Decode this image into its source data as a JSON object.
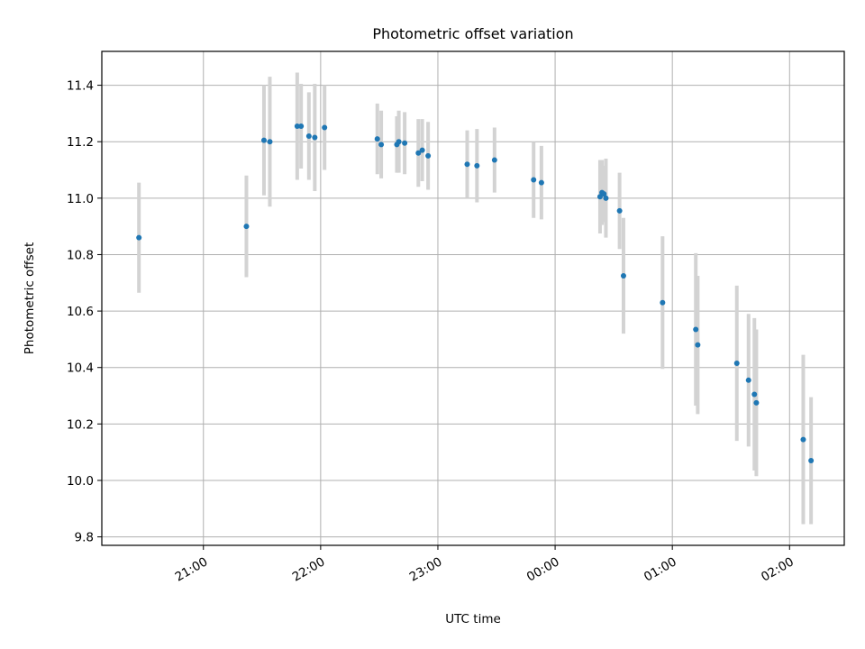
{
  "chart_data": {
    "type": "scatter",
    "title": "Photometric offset variation",
    "xlabel": "UTC time",
    "ylabel": "Photometric offset",
    "xlim": [
      "20:08",
      "02:28"
    ],
    "ylim": [
      9.77,
      11.52
    ],
    "x_ticks": [
      "21:00",
      "22:00",
      "23:00",
      "00:00",
      "01:00",
      "02:00"
    ],
    "y_ticks": [
      9.8,
      10.0,
      10.2,
      10.4,
      10.6,
      10.8,
      11.0,
      11.2,
      11.4
    ],
    "grid": true,
    "colors": {
      "points": "#1f77b4",
      "errorbars": "#d3d3d3",
      "grid": "#b0b0b0"
    },
    "points": [
      {
        "x": "20:27",
        "y": 10.86,
        "err": 0.195
      },
      {
        "x": "21:22",
        "y": 10.9,
        "err": 0.18
      },
      {
        "x": "21:31",
        "y": 11.205,
        "err": 0.195
      },
      {
        "x": "21:34",
        "y": 11.2,
        "err": 0.23
      },
      {
        "x": "21:48",
        "y": 11.255,
        "err": 0.19
      },
      {
        "x": "21:50",
        "y": 11.255,
        "err": 0.15
      },
      {
        "x": "21:54",
        "y": 11.22,
        "err": 0.155
      },
      {
        "x": "21:57",
        "y": 11.215,
        "err": 0.19
      },
      {
        "x": "22:02",
        "y": 11.25,
        "err": 0.15
      },
      {
        "x": "22:29",
        "y": 11.21,
        "err": 0.125
      },
      {
        "x": "22:31",
        "y": 11.19,
        "err": 0.12
      },
      {
        "x": "22:39",
        "y": 11.19,
        "err": 0.1
      },
      {
        "x": "22:40",
        "y": 11.2,
        "err": 0.11
      },
      {
        "x": "22:43",
        "y": 11.195,
        "err": 0.11
      },
      {
        "x": "22:50",
        "y": 11.16,
        "err": 0.12
      },
      {
        "x": "22:52",
        "y": 11.17,
        "err": 0.11
      },
      {
        "x": "22:55",
        "y": 11.15,
        "err": 0.12
      },
      {
        "x": "23:15",
        "y": 11.12,
        "err": 0.12
      },
      {
        "x": "23:20",
        "y": 11.115,
        "err": 0.13
      },
      {
        "x": "23:29",
        "y": 11.135,
        "err": 0.115
      },
      {
        "x": "23:49",
        "y": 11.065,
        "err": 0.135
      },
      {
        "x": "23:53",
        "y": 11.055,
        "err": 0.13
      },
      {
        "x": "00:23",
        "y": 11.005,
        "err": 0.13
      },
      {
        "x": "00:24",
        "y": 11.02,
        "err": 0.115
      },
      {
        "x": "00:25",
        "y": 11.015,
        "err": 0.1
      },
      {
        "x": "00:26",
        "y": 11.0,
        "err": 0.14
      },
      {
        "x": "00:33",
        "y": 10.955,
        "err": 0.135
      },
      {
        "x": "00:35",
        "y": 10.725,
        "err": 0.205
      },
      {
        "x": "00:55",
        "y": 10.63,
        "err": 0.235
      },
      {
        "x": "01:12",
        "y": 10.535,
        "err": 0.27
      },
      {
        "x": "01:13",
        "y": 10.48,
        "err": 0.245
      },
      {
        "x": "01:33",
        "y": 10.415,
        "err": 0.275
      },
      {
        "x": "01:39",
        "y": 10.355,
        "err": 0.235
      },
      {
        "x": "01:42",
        "y": 10.305,
        "err": 0.27
      },
      {
        "x": "01:43",
        "y": 10.275,
        "err": 0.26
      },
      {
        "x": "02:07",
        "y": 10.145,
        "err": 0.3
      },
      {
        "x": "02:11",
        "y": 10.07,
        "err": 0.225
      }
    ]
  }
}
